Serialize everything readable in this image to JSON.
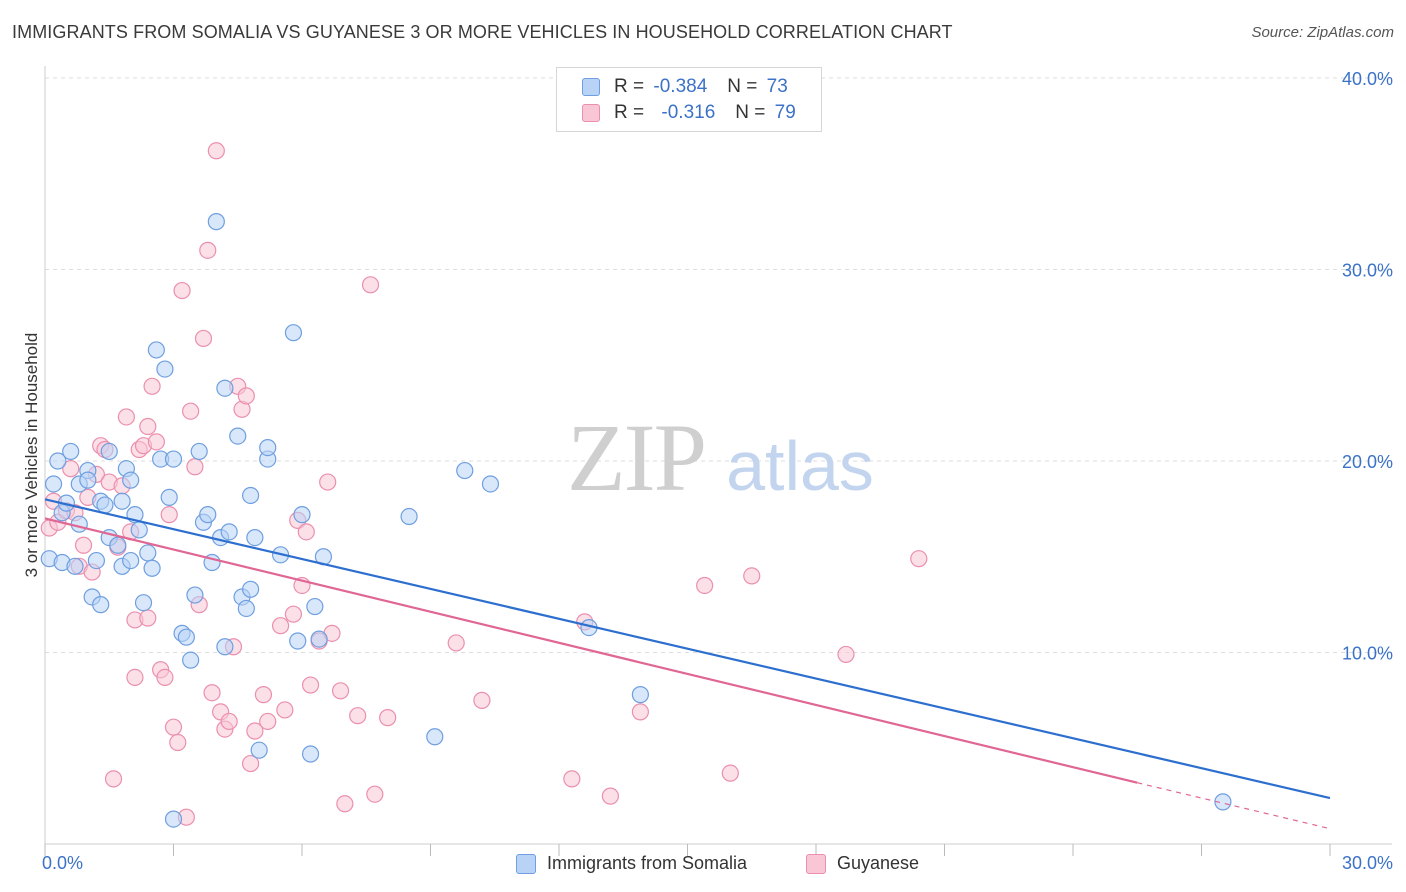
{
  "title": "IMMIGRANTS FROM SOMALIA VS GUYANESE 3 OR MORE VEHICLES IN HOUSEHOLD CORRELATION CHART",
  "source": "Source: ZipAtlas.com",
  "watermark": {
    "zip": "ZIP",
    "atlas": "atlas"
  },
  "colors": {
    "somalia_fill": "#b8d3f5",
    "somalia_stroke": "#6f9fe0",
    "somalia_line": "#2d6fcf",
    "guyanese_fill": "#f9c6d5",
    "guyanese_stroke": "#eb8fae",
    "guyanese_line": "#e06694",
    "axis_text": "#3b72c8",
    "grid": "#dddddd"
  },
  "stats": [
    {
      "r_label": "R =",
      "r_value": "-0.384",
      "n_label": "N =",
      "n_value": "73"
    },
    {
      "r_label": "R =",
      "r_value": "-0.316",
      "n_label": "N =",
      "n_value": "79"
    }
  ],
  "chart_data": {
    "type": "scatter",
    "title": "IMMIGRANTS FROM SOMALIA VS GUYANESE 3 OR MORE VEHICLES IN HOUSEHOLD CORRELATION CHART",
    "xlabel": "",
    "ylabel": "3 or more Vehicles in Household",
    "xlim": [
      0,
      30
    ],
    "ylim": [
      0,
      40
    ],
    "x_tick_labels": [
      "0.0%",
      "30.0%"
    ],
    "y_tick_values": [
      10,
      20,
      30,
      40
    ],
    "y_tick_labels": [
      "10.0%",
      "20.0%",
      "30.0%",
      "40.0%"
    ],
    "legend_position": "bottom",
    "series": [
      {
        "name": "Immigrants from Somalia",
        "trend": {
          "x": [
            0,
            30
          ],
          "y": [
            18.0,
            2.4
          ]
        },
        "points": [
          [
            0.1,
            14.9
          ],
          [
            0.2,
            18.8
          ],
          [
            0.3,
            20.0
          ],
          [
            0.4,
            14.7
          ],
          [
            0.4,
            17.3
          ],
          [
            0.5,
            17.8
          ],
          [
            0.6,
            20.5
          ],
          [
            0.7,
            14.5
          ],
          [
            0.8,
            18.8
          ],
          [
            0.8,
            16.7
          ],
          [
            1.0,
            19.5
          ],
          [
            1.0,
            19.0
          ],
          [
            1.1,
            12.9
          ],
          [
            1.2,
            14.8
          ],
          [
            1.3,
            12.5
          ],
          [
            1.3,
            17.9
          ],
          [
            1.4,
            17.7
          ],
          [
            1.5,
            16.0
          ],
          [
            1.5,
            20.5
          ],
          [
            1.7,
            15.6
          ],
          [
            1.8,
            14.5
          ],
          [
            1.8,
            17.9
          ],
          [
            1.9,
            19.6
          ],
          [
            2.0,
            14.8
          ],
          [
            2.0,
            19.0
          ],
          [
            2.1,
            17.2
          ],
          [
            2.2,
            16.4
          ],
          [
            2.3,
            12.6
          ],
          [
            2.4,
            15.2
          ],
          [
            2.5,
            14.4
          ],
          [
            2.6,
            25.8
          ],
          [
            2.7,
            20.1
          ],
          [
            2.8,
            24.8
          ],
          [
            2.9,
            18.1
          ],
          [
            3.0,
            20.1
          ],
          [
            3.0,
            1.3
          ],
          [
            3.2,
            11.0
          ],
          [
            3.3,
            10.8
          ],
          [
            3.4,
            9.6
          ],
          [
            3.5,
            13.0
          ],
          [
            3.6,
            20.5
          ],
          [
            3.7,
            16.8
          ],
          [
            3.8,
            17.2
          ],
          [
            3.9,
            14.7
          ],
          [
            4.0,
            32.5
          ],
          [
            4.1,
            16.0
          ],
          [
            4.2,
            23.8
          ],
          [
            4.2,
            10.3
          ],
          [
            4.3,
            16.3
          ],
          [
            4.5,
            21.3
          ],
          [
            4.6,
            12.9
          ],
          [
            4.7,
            12.3
          ],
          [
            4.8,
            13.3
          ],
          [
            4.8,
            18.2
          ],
          [
            4.9,
            16.0
          ],
          [
            5.0,
            4.9
          ],
          [
            5.2,
            20.1
          ],
          [
            5.2,
            20.7
          ],
          [
            5.5,
            15.1
          ],
          [
            5.8,
            26.7
          ],
          [
            5.9,
            10.6
          ],
          [
            6.0,
            17.2
          ],
          [
            6.2,
            4.7
          ],
          [
            6.3,
            12.4
          ],
          [
            6.4,
            10.7
          ],
          [
            6.5,
            15.0
          ],
          [
            8.5,
            17.1
          ],
          [
            9.1,
            5.6
          ],
          [
            9.8,
            19.5
          ],
          [
            10.4,
            18.8
          ],
          [
            12.7,
            11.3
          ],
          [
            13.9,
            7.8
          ],
          [
            27.5,
            2.2
          ]
        ]
      },
      {
        "name": "Guyanese",
        "trend": {
          "x": [
            0,
            25.5
          ],
          "y": [
            17.0,
            3.2
          ]
        },
        "trend_dashed": {
          "x": [
            25.5,
            30
          ],
          "y": [
            3.2,
            0.8
          ]
        },
        "points": [
          [
            0.1,
            16.5
          ],
          [
            0.2,
            17.9
          ],
          [
            0.3,
            16.8
          ],
          [
            0.5,
            17.4
          ],
          [
            0.6,
            19.6
          ],
          [
            0.7,
            17.3
          ],
          [
            0.8,
            14.5
          ],
          [
            0.9,
            15.6
          ],
          [
            1.0,
            18.1
          ],
          [
            1.1,
            14.2
          ],
          [
            1.2,
            19.3
          ],
          [
            1.3,
            20.8
          ],
          [
            1.4,
            20.6
          ],
          [
            1.5,
            18.9
          ],
          [
            1.6,
            3.4
          ],
          [
            1.7,
            15.5
          ],
          [
            1.8,
            18.7
          ],
          [
            1.9,
            22.3
          ],
          [
            2.0,
            16.3
          ],
          [
            2.1,
            11.7
          ],
          [
            2.1,
            8.7
          ],
          [
            2.2,
            20.6
          ],
          [
            2.3,
            20.8
          ],
          [
            2.4,
            11.8
          ],
          [
            2.4,
            21.8
          ],
          [
            2.5,
            23.9
          ],
          [
            2.6,
            21.0
          ],
          [
            2.7,
            9.1
          ],
          [
            2.8,
            8.7
          ],
          [
            2.9,
            17.2
          ],
          [
            3.0,
            6.1
          ],
          [
            3.1,
            5.3
          ],
          [
            3.2,
            28.9
          ],
          [
            3.3,
            1.4
          ],
          [
            3.4,
            22.6
          ],
          [
            3.5,
            19.7
          ],
          [
            3.6,
            12.5
          ],
          [
            3.7,
            26.4
          ],
          [
            3.8,
            31.0
          ],
          [
            3.9,
            7.9
          ],
          [
            4.0,
            36.2
          ],
          [
            4.1,
            6.9
          ],
          [
            4.2,
            6.0
          ],
          [
            4.3,
            6.4
          ],
          [
            4.4,
            10.3
          ],
          [
            4.5,
            23.9
          ],
          [
            4.6,
            22.7
          ],
          [
            4.7,
            23.4
          ],
          [
            4.8,
            4.2
          ],
          [
            4.9,
            5.9
          ],
          [
            5.1,
            7.8
          ],
          [
            5.2,
            6.4
          ],
          [
            5.5,
            11.4
          ],
          [
            5.6,
            7.0
          ],
          [
            5.8,
            12.0
          ],
          [
            5.9,
            16.9
          ],
          [
            6.0,
            13.5
          ],
          [
            6.1,
            16.3
          ],
          [
            6.2,
            8.3
          ],
          [
            6.4,
            10.6
          ],
          [
            6.6,
            18.9
          ],
          [
            6.7,
            11.0
          ],
          [
            6.9,
            8.0
          ],
          [
            7.0,
            2.1
          ],
          [
            7.3,
            6.7
          ],
          [
            7.6,
            29.2
          ],
          [
            7.7,
            2.6
          ],
          [
            8.0,
            6.6
          ],
          [
            9.6,
            10.5
          ],
          [
            10.2,
            7.5
          ],
          [
            12.3,
            3.4
          ],
          [
            12.6,
            11.6
          ],
          [
            13.9,
            6.9
          ],
          [
            15.4,
            13.5
          ],
          [
            16.0,
            3.7
          ],
          [
            16.5,
            14.0
          ],
          [
            18.7,
            9.9
          ],
          [
            20.4,
            14.9
          ],
          [
            13.2,
            2.5
          ]
        ]
      }
    ]
  },
  "legend": [
    {
      "label": "Immigrants from Somalia"
    },
    {
      "label": "Guyanese"
    }
  ]
}
